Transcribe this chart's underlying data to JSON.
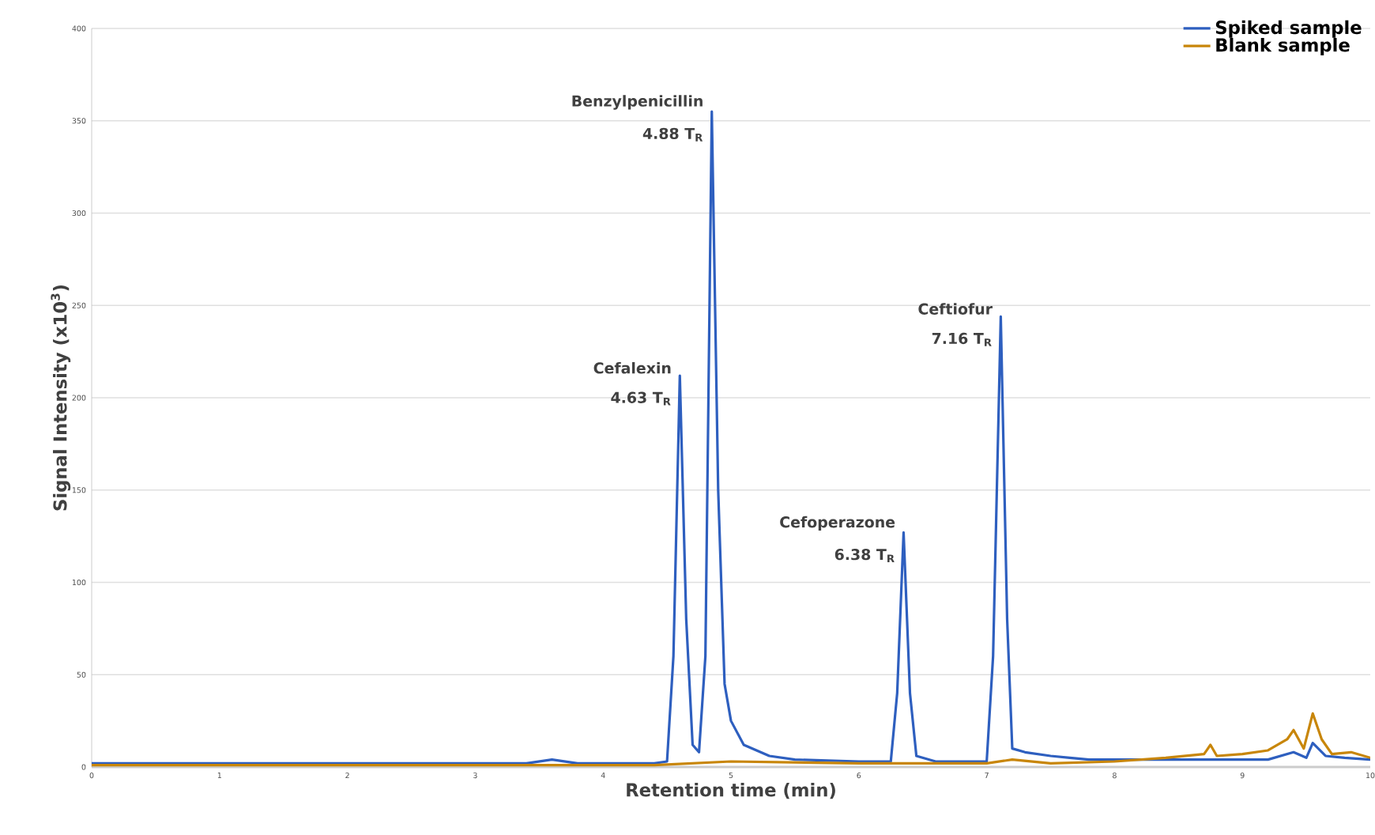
{
  "chart_data": {
    "type": "line",
    "xlabel": "Retention time (min)",
    "ylabel": "Signal Intensity (x10$^{3}$)",
    "xlim": [
      0,
      10
    ],
    "xticks": [
      0,
      1,
      2,
      3,
      4,
      5,
      6,
      7,
      8,
      9,
      10
    ],
    "ylim": [
      0,
      400
    ],
    "yticks": [
      0,
      50,
      100,
      150,
      200,
      250,
      300,
      350,
      400
    ],
    "grid": "y",
    "legend": "top right",
    "marker": "none",
    "line_style": "solid",
    "series": [
      {
        "name": "Spiked sample",
        "color": "#2e5fbf",
        "x": [
          0,
          1,
          2,
          3,
          3.4,
          3.6,
          3.8,
          4.4,
          4.5,
          4.55,
          4.6,
          4.65,
          4.7,
          4.75,
          4.8,
          4.85,
          4.9,
          4.95,
          5.0,
          5.1,
          5.3,
          5.5,
          6.0,
          6.25,
          6.3,
          6.35,
          6.4,
          6.45,
          6.6,
          7.0,
          7.05,
          7.11,
          7.16,
          7.2,
          7.3,
          7.5,
          7.65,
          7.8,
          8.0,
          8.5,
          9.0,
          9.2,
          9.4,
          9.5,
          9.55,
          9.65,
          9.8,
          10
        ],
        "values": [
          2,
          2,
          2,
          2,
          2,
          4,
          2,
          2,
          3,
          60,
          212,
          80,
          12,
          8,
          60,
          355,
          150,
          45,
          25,
          12,
          6,
          4,
          3,
          3,
          40,
          127,
          40,
          6,
          3,
          3,
          60,
          244,
          80,
          10,
          8,
          6,
          5,
          4,
          4,
          4,
          4,
          4,
          8,
          5,
          13,
          6,
          5,
          4
        ]
      },
      {
        "name": "Blank sample",
        "color": "#c8860a",
        "x": [
          0,
          3,
          4.4,
          5,
          6,
          7,
          7.2,
          7.5,
          8,
          8.4,
          8.7,
          8.75,
          8.8,
          9.0,
          9.2,
          9.35,
          9.4,
          9.48,
          9.55,
          9.62,
          9.7,
          9.85,
          10
        ],
        "values": [
          1,
          1,
          1,
          3,
          2,
          2,
          4,
          2,
          3,
          5,
          7,
          12,
          6,
          7,
          9,
          15,
          20,
          10,
          29,
          15,
          7,
          8,
          5
        ]
      }
    ],
    "annotations": [
      {
        "text": "Cefalexin",
        "x": 4.6,
        "y": 212
      },
      {
        "text": "4.63 T$_{R}$",
        "x": 4.6,
        "y": 212
      },
      {
        "text": "Benzylpenicillin",
        "x": 4.85,
        "y": 355
      },
      {
        "text": "4.88 T$_{R}$",
        "x": 4.85,
        "y": 355
      },
      {
        "text": "Cefoperazone",
        "x": 6.35,
        "y": 127
      },
      {
        "text": "6.38 T$_{R}$",
        "x": 6.35,
        "y": 127
      },
      {
        "text": "Ceftiofur",
        "x": 7.11,
        "y": 244
      },
      {
        "text": "7.16 T$_{R}$",
        "x": 7.11,
        "y": 244
      }
    ]
  }
}
